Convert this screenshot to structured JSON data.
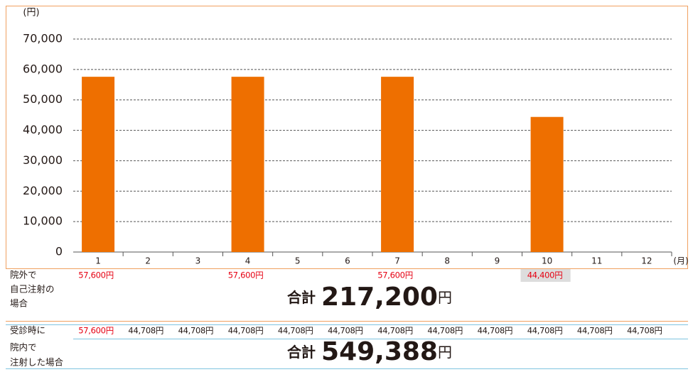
{
  "chart_data": {
    "type": "bar",
    "y_unit": "(円)",
    "x_unit": "(月)",
    "categories": [
      "1",
      "2",
      "3",
      "4",
      "5",
      "6",
      "7",
      "8",
      "9",
      "10",
      "11",
      "12"
    ],
    "values": [
      57600,
      null,
      null,
      57600,
      null,
      null,
      57600,
      null,
      null,
      44400,
      null,
      null
    ],
    "color": "#ee6f00",
    "ylim": [
      0,
      70000
    ],
    "yticks": [
      0,
      {
        "value": 10000,
        "label": "10,000"
      },
      {
        "value": 20000,
        "label": "20,000"
      },
      {
        "value": 30000,
        "label": "30,000"
      },
      {
        "value": 40000,
        "label": "40,000"
      },
      {
        "value": 50000,
        "label": "50,000"
      },
      {
        "value": 60000,
        "label": "60,000"
      },
      {
        "value": 70000,
        "label": "70,000"
      }
    ],
    "grid": true
  },
  "table": {
    "rows": [
      {
        "label": [
          "院外で",
          "自己注射の",
          "場合"
        ],
        "value_labels": [
          "57,600円",
          null,
          null,
          "57,600円",
          null,
          null,
          "57,600円",
          null,
          null,
          "44,400円",
          null,
          null
        ],
        "colors": [
          "#e60012",
          null,
          null,
          "#e60012",
          null,
          null,
          "#e60012",
          null,
          null,
          "#e60012",
          null,
          null
        ],
        "highlight_index": 9,
        "total_prefix": "合計",
        "total": "217,200",
        "total_unit": "円"
      },
      {
        "label": [
          "受診時に",
          "院内で",
          "注射した場合"
        ],
        "value_labels": [
          "57,600円",
          "44,708円",
          "44,708円",
          "44,708円",
          "44,708円",
          "44,708円",
          "44,708円",
          "44,708円",
          "44,708円",
          "44,708円",
          "44,708円",
          "44,708円"
        ],
        "colors": [
          "#e60012",
          "#231815",
          "#231815",
          "#231815",
          "#231815",
          "#231815",
          "#231815",
          "#231815",
          "#231815",
          "#231815",
          "#231815",
          "#231815"
        ],
        "total_prefix": "合計",
        "total": "549,388",
        "total_unit": "円"
      }
    ]
  }
}
